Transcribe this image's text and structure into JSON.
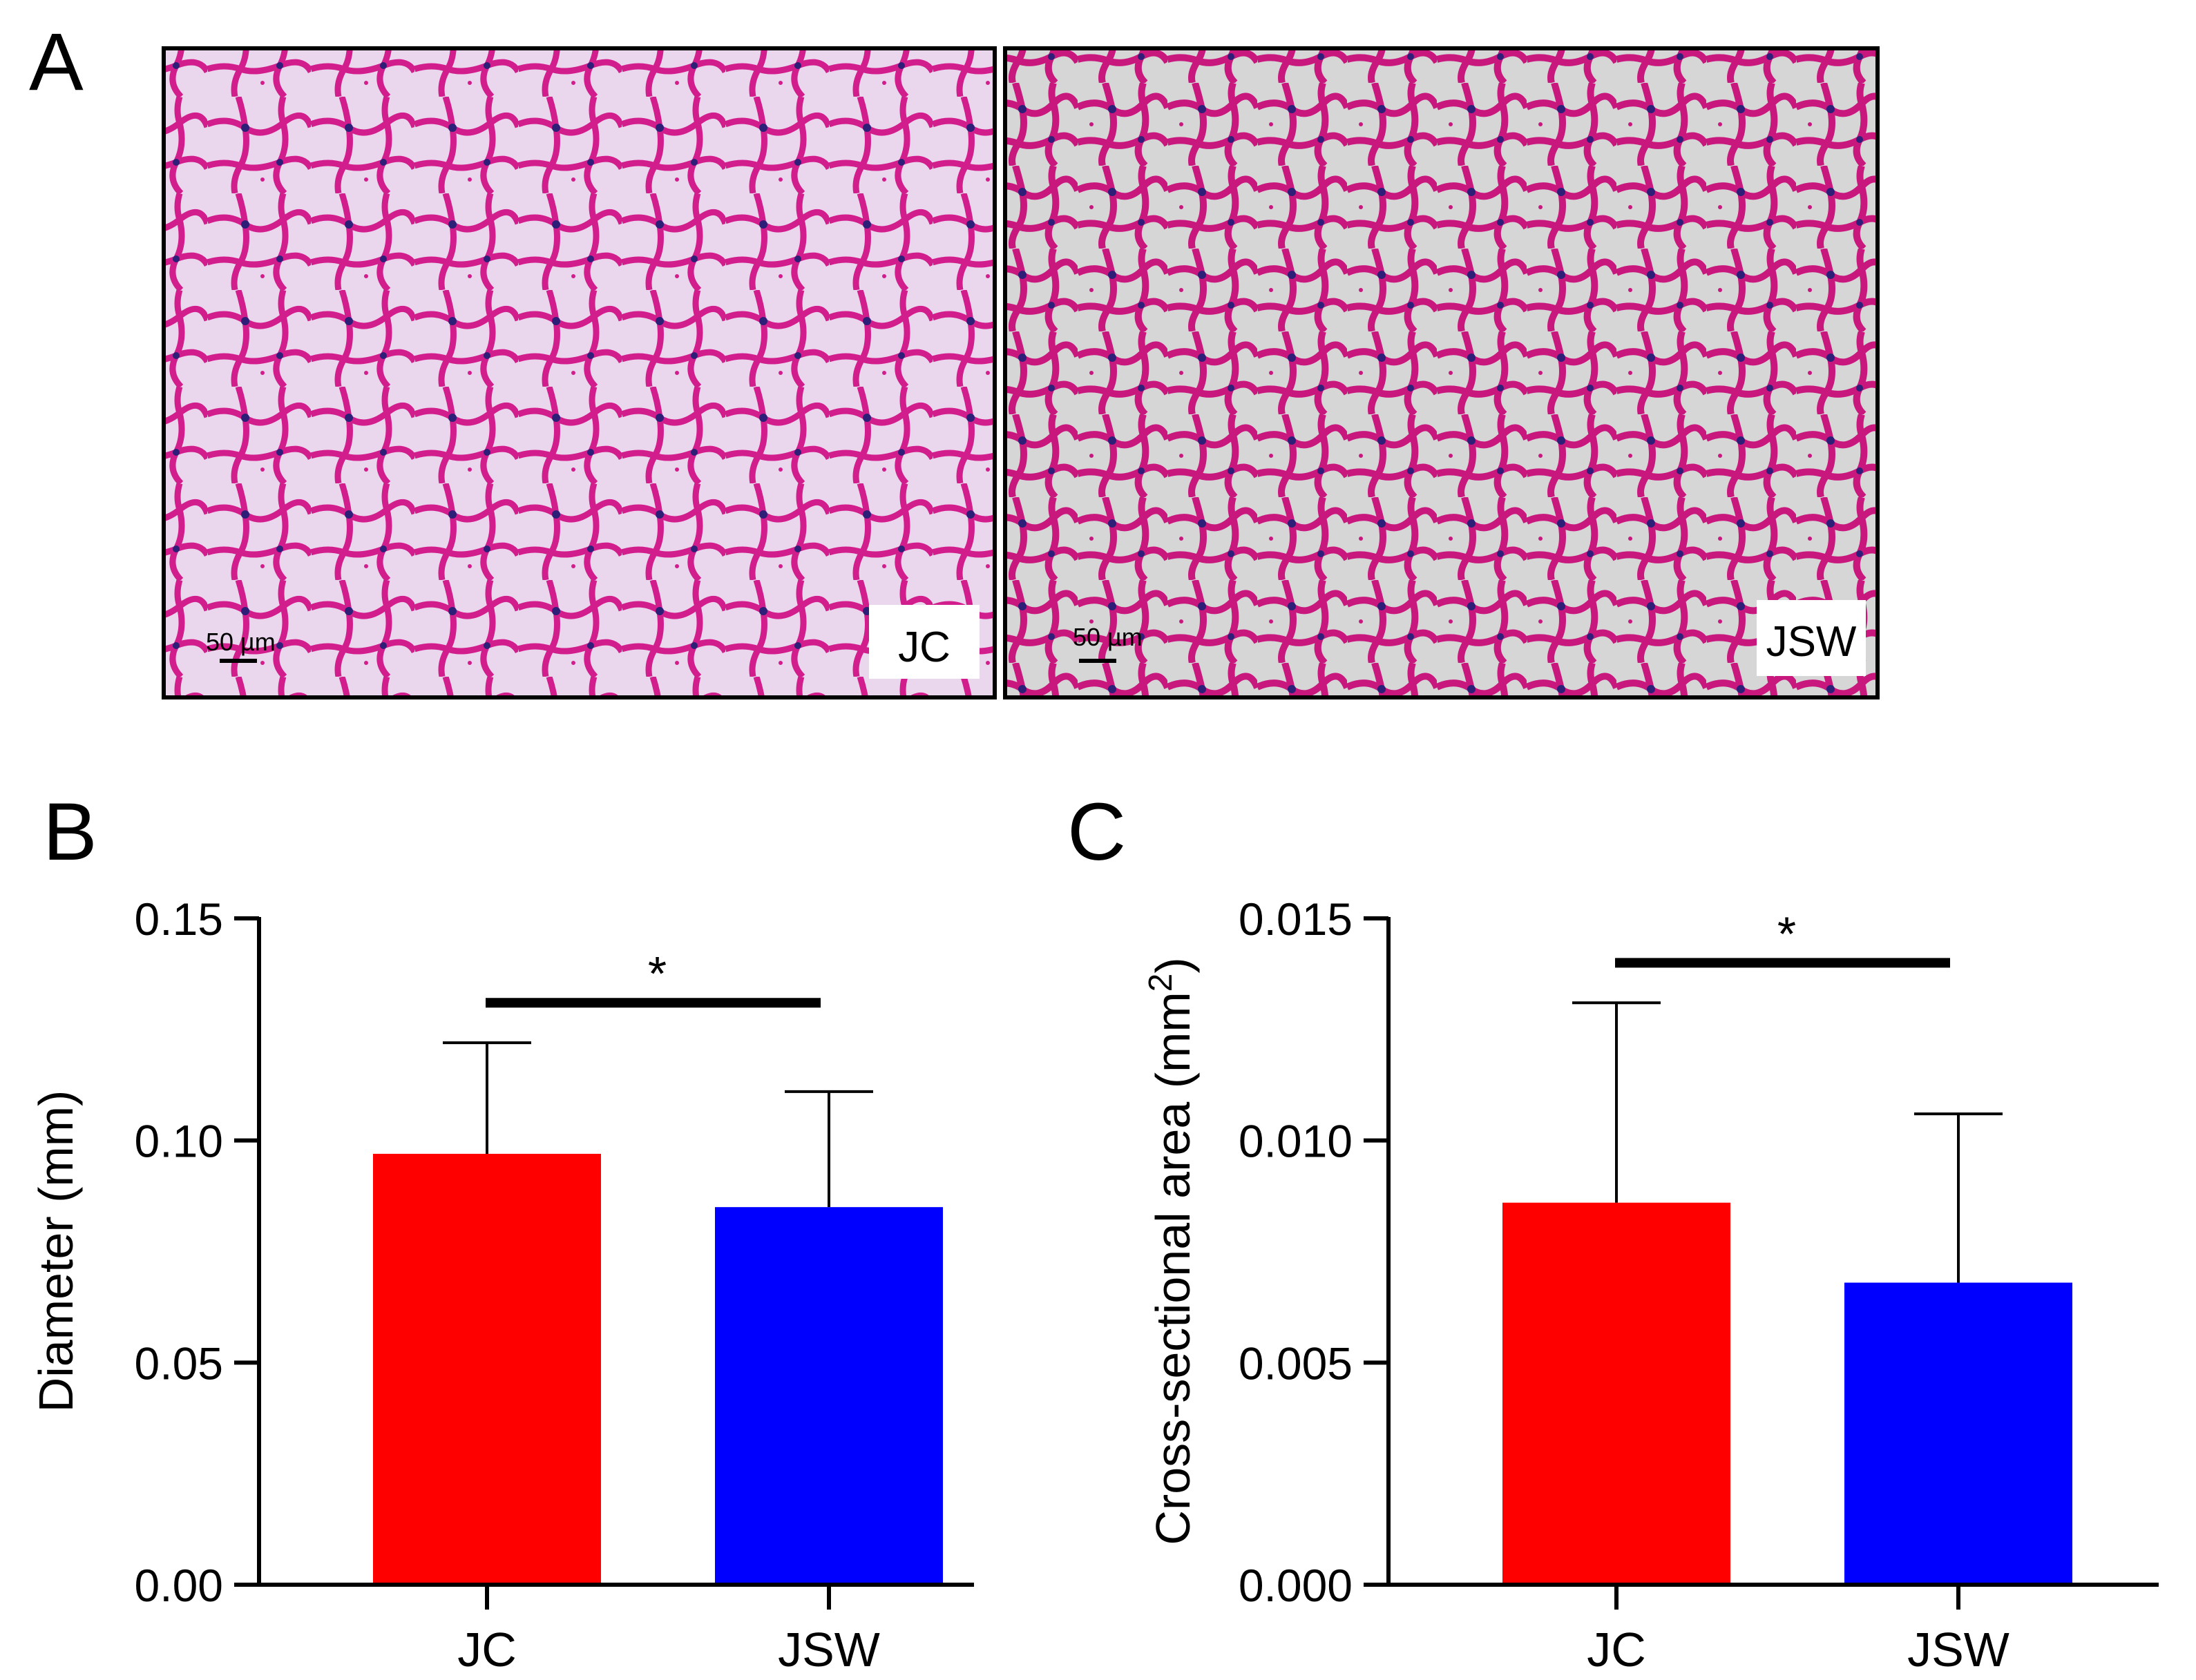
{
  "panel_labels": {
    "a": "A",
    "b": "B",
    "c": "C"
  },
  "micrographs": [
    {
      "label": "JC",
      "scale_bar": "50 µm"
    },
    {
      "label": "JSW",
      "scale_bar": "50 µm"
    }
  ],
  "colors": {
    "tissue_background": "#ead7ee",
    "tissue_background_right": "#d6d6d6",
    "tissue_stain": "#d21e8c",
    "nuclei": "#2d1e78",
    "bar_jc": "#ff0000",
    "bar_jsw": "#0000ff",
    "axis": "#000000"
  },
  "significance_marker": "*",
  "chart_data": [
    {
      "type": "bar",
      "panel": "B",
      "categories": [
        "JC",
        "JSW"
      ],
      "values": [
        0.097,
        0.085
      ],
      "error_upper": [
        0.122,
        0.111
      ],
      "ylabel": "Diameter (mm)",
      "ylim": [
        0,
        0.15
      ],
      "yticks": [
        0.0,
        0.05,
        0.1,
        0.15
      ],
      "ytick_labels": [
        "0.00",
        "0.05",
        "0.10",
        "0.15"
      ],
      "significance": {
        "marker": "*",
        "value": 0.131,
        "between": [
          "JC",
          "JSW"
        ]
      }
    },
    {
      "type": "bar",
      "panel": "C",
      "categories": [
        "JC",
        "JSW"
      ],
      "values": [
        0.0086,
        0.0068
      ],
      "error_upper": [
        0.0131,
        0.0106
      ],
      "ylabel": "Cross-sectional area (mm",
      "ylabel_superscript": "2",
      "ylabel_suffix": ")",
      "ylim": [
        0,
        0.015
      ],
      "yticks": [
        0.0,
        0.005,
        0.01,
        0.015
      ],
      "ytick_labels": [
        "0.000",
        "0.005",
        "0.010",
        "0.015"
      ],
      "significance": {
        "marker": "*",
        "value": 0.014,
        "between": [
          "JC",
          "JSW"
        ]
      }
    }
  ]
}
